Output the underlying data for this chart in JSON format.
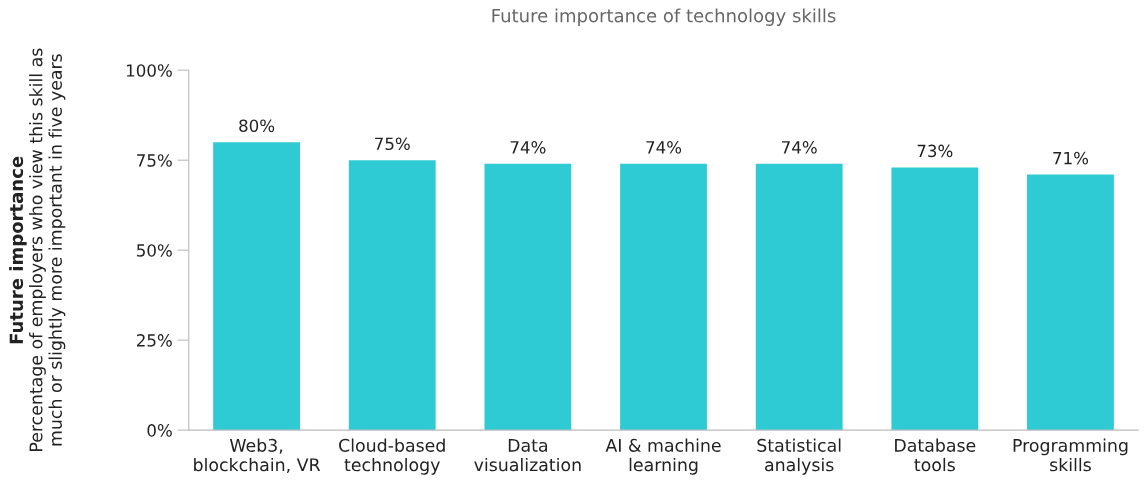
{
  "chart_data": {
    "type": "bar",
    "title": "Future importance of technology skills",
    "ylabel": "Percentage of employers who view this skill as\nmuch or slightly more important in five years",
    "annotations": [
      "Future importance"
    ],
    "categories": [
      "Web3,\nblockchain, VR",
      "Cloud-based\ntechnology",
      "Data\nvisualization",
      "AI & machine\nlearning",
      "Statistical\nanalysis",
      "Database\ntools",
      "Programming\nskills"
    ],
    "values": [
      80,
      75,
      74,
      74,
      74,
      73,
      71
    ],
    "value_labels": [
      "80%",
      "75%",
      "74%",
      "74%",
      "74%",
      "73%",
      "71%"
    ],
    "color": "#2ecbd5",
    "ylim": [
      0,
      100
    ],
    "yticks": [
      {
        "value": 0,
        "label": "0%"
      },
      {
        "value": 25,
        "label": "25%"
      },
      {
        "value": 50,
        "label": "50%"
      },
      {
        "value": 75,
        "label": "75%"
      },
      {
        "value": 100,
        "label": "100%"
      }
    ],
    "grid": false,
    "legend": false
  }
}
